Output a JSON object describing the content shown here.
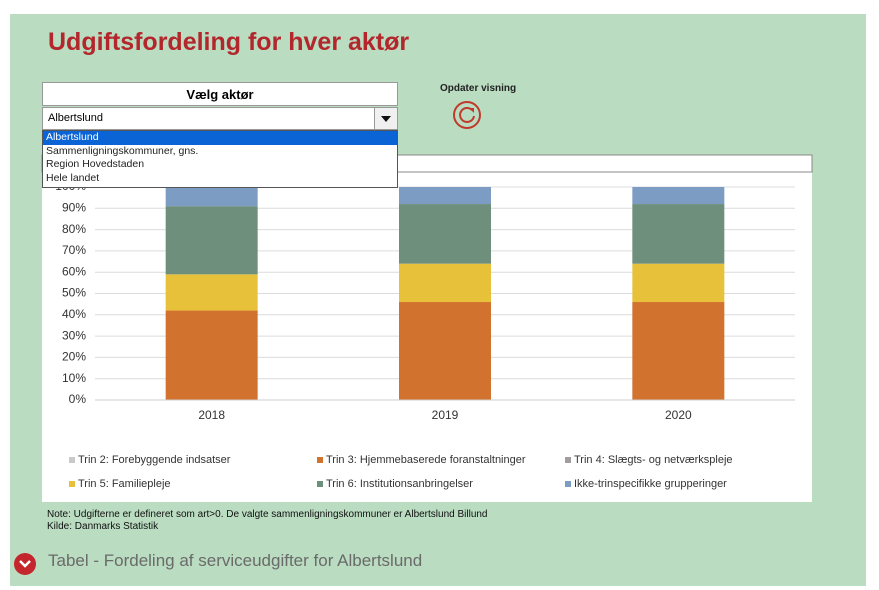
{
  "header": {
    "title": "Udgiftsfordeling for hver aktør"
  },
  "selector": {
    "label": "Vælg aktør",
    "selected": "Albertslund",
    "options": [
      "Albertslund",
      "Sammenligningskommuner, gns.",
      "Region Hovedstaden",
      "Hele landet"
    ]
  },
  "refresh": {
    "label": "Opdater visning"
  },
  "chart_data": {
    "type": "bar",
    "stacked": true,
    "categories": [
      "2018",
      "2019",
      "2020"
    ],
    "series": [
      {
        "name": "Trin 2: Forebyggende indsatser",
        "color": "#c9c9c9",
        "values": [
          0,
          0,
          0
        ]
      },
      {
        "name": "Trin 3: Hjemmebaserede foranstaltninger",
        "color": "#d2722f",
        "values": [
          42,
          46,
          46
        ]
      },
      {
        "name": "Trin 4: Slægts- og netværkspleje",
        "color": "#a09ca0",
        "values": [
          0,
          0,
          0
        ]
      },
      {
        "name": "Trin 5: Familiepleje",
        "color": "#e8c13a",
        "values": [
          17,
          18,
          18
        ]
      },
      {
        "name": "Trin 6: Institutionsanbringelser",
        "color": "#6e8f7c",
        "values": [
          32,
          28,
          28
        ]
      },
      {
        "name": "Ikke-trinspecifikke grupperinger",
        "color": "#7d9cc4",
        "values": [
          9,
          8,
          8
        ]
      }
    ],
    "ylim": [
      0,
      100
    ],
    "yticks": [
      {
        "value": 0,
        "label": "0%"
      },
      {
        "value": 10,
        "label": "10%"
      },
      {
        "value": 20,
        "label": "20%"
      },
      {
        "value": 30,
        "label": "30%"
      },
      {
        "value": 40,
        "label": "40%"
      },
      {
        "value": 50,
        "label": "50%"
      },
      {
        "value": 60,
        "label": "60%"
      },
      {
        "value": 70,
        "label": "70%"
      },
      {
        "value": 80,
        "label": "80%"
      },
      {
        "value": 90,
        "label": "90%"
      },
      {
        "value": 100,
        "label": "100%"
      }
    ],
    "grid": true
  },
  "notes": [
    "Note: Udgifterne er defineret som art>0. De valgte sammenligningskommuner er Albertslund Billund",
    "Kilde: Danmarks Statistik"
  ],
  "footer": {
    "label": "Tabel - Fordeling af serviceudgifter for Albertslund"
  }
}
